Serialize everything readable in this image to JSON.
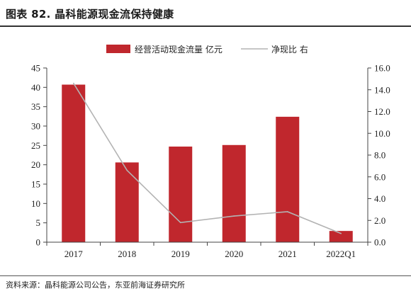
{
  "header": {
    "title": "图表 82. 晶科能源现金流保持健康"
  },
  "footer": {
    "source": "资料来源：晶科能源公司公告，东亚前海证券研究所"
  },
  "chart_data": {
    "type": "bar",
    "categories": [
      "2017",
      "2018",
      "2019",
      "2020",
      "2021",
      "2022Q1"
    ],
    "series": [
      {
        "name": "经营活动现金流量 亿元",
        "type": "bar",
        "axis": "left",
        "color": "#c0272d",
        "values": [
          40.7,
          20.6,
          24.7,
          25.1,
          32.4,
          2.9
        ]
      },
      {
        "name": "净现比 右",
        "type": "line",
        "axis": "right",
        "color": "#b3b3b3",
        "values": [
          14.6,
          6.6,
          1.8,
          2.4,
          2.8,
          0.8
        ]
      }
    ],
    "y_left": {
      "min": 0,
      "max": 45,
      "step": 5,
      "ticks": [
        "0",
        "5",
        "10",
        "15",
        "20",
        "25",
        "30",
        "35",
        "40",
        "45"
      ]
    },
    "y_right": {
      "min": 0,
      "max": 16,
      "step": 2,
      "ticks": [
        "0.0",
        "2.0",
        "4.0",
        "6.0",
        "8.0",
        "10.0",
        "12.0",
        "14.0",
        "16.0"
      ]
    },
    "grid": false,
    "legend_position": "top"
  }
}
